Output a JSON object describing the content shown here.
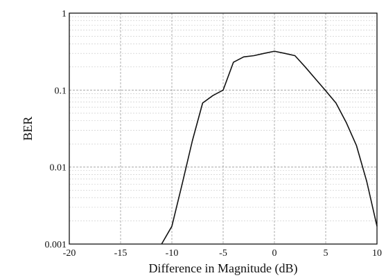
{
  "chart_data": {
    "type": "line",
    "title": "",
    "xlabel": "Difference in Magnitude (dB)",
    "ylabel": "BER",
    "xlim": [
      -20,
      10
    ],
    "ylim": [
      0.001,
      1
    ],
    "yscale": "log",
    "grid": true,
    "x_ticks": [
      -20,
      -15,
      -10,
      -5,
      0,
      5,
      10
    ],
    "x_tick_labels": [
      "-20",
      "-15",
      "-10",
      "-5",
      "0",
      "5",
      "10"
    ],
    "y_ticks": [
      0.001,
      0.01,
      0.1,
      1
    ],
    "y_tick_labels": [
      "0.001",
      "0.01",
      "0.1",
      "1"
    ],
    "series": [
      {
        "x": [
          -11,
          -10,
          -9,
          -8,
          -7,
          -6,
          -5,
          -4,
          -3,
          -2,
          -1,
          0,
          1,
          2,
          3,
          4,
          5,
          6,
          7,
          8,
          9,
          10
        ],
        "y": [
          0.001,
          0.0017,
          0.006,
          0.022,
          0.068,
          0.085,
          0.1,
          0.23,
          0.27,
          0.28,
          0.3,
          0.32,
          0.3,
          0.28,
          0.2,
          0.14,
          0.098,
          0.068,
          0.038,
          0.019,
          0.0065,
          0.0017
        ]
      }
    ]
  }
}
